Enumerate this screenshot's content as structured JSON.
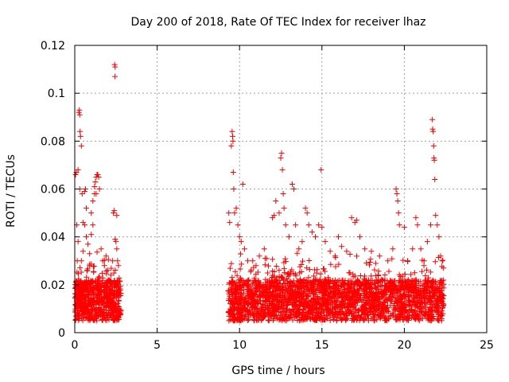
{
  "chart_data": {
    "type": "scatter",
    "title": "Day 200 of 2018, Rate Of TEC Index for receiver lhaz",
    "xlabel": "GPS time / hours",
    "ylabel": "ROTI / TECUs",
    "xlim": [
      0,
      25
    ],
    "ylim": [
      0,
      0.12
    ],
    "x_ticks": [
      "0",
      "5",
      "10",
      "15",
      "20",
      "25"
    ],
    "y_ticks": [
      "0",
      "0.02",
      "0.04",
      "0.06",
      "0.08",
      "0.1",
      "0.12"
    ],
    "grid": true,
    "marker": "plus",
    "color": "#ff0000",
    "series": [
      {
        "values": [
          [
            0.05,
            0.066
          ],
          [
            0.1,
            0.067
          ],
          [
            0.12,
            0.045
          ],
          [
            0.15,
            0.03
          ],
          [
            0.2,
            0.038
          ],
          [
            0.25,
            0.092
          ],
          [
            0.28,
            0.093
          ],
          [
            0.3,
            0.091
          ],
          [
            0.32,
            0.084
          ],
          [
            0.35,
            0.082
          ],
          [
            0.4,
            0.078
          ],
          [
            0.2,
            0.068
          ],
          [
            0.3,
            0.06
          ],
          [
            0.45,
            0.058
          ],
          [
            0.5,
            0.046
          ],
          [
            0.6,
            0.045
          ],
          [
            0.7,
            0.04
          ],
          [
            0.8,
            0.037
          ],
          [
            0.9,
            0.033
          ],
          [
            1.0,
            0.05
          ],
          [
            1.1,
            0.055
          ],
          [
            1.2,
            0.058
          ],
          [
            1.3,
            0.065
          ],
          [
            1.35,
            0.066
          ],
          [
            1.4,
            0.066
          ],
          [
            1.45,
            0.065
          ],
          [
            1.5,
            0.06
          ],
          [
            1.2,
            0.061
          ],
          [
            1.25,
            0.063
          ],
          [
            1.3,
            0.058
          ],
          [
            1.1,
            0.045
          ],
          [
            1.0,
            0.041
          ],
          [
            0.6,
            0.059
          ],
          [
            0.65,
            0.06
          ],
          [
            0.7,
            0.052
          ],
          [
            0.5,
            0.034
          ],
          [
            0.4,
            0.03
          ],
          [
            0.9,
            0.028
          ],
          [
            1.6,
            0.035
          ],
          [
            1.7,
            0.03
          ],
          [
            1.8,
            0.028
          ],
          [
            2.0,
            0.026
          ],
          [
            2.2,
            0.024
          ],
          [
            2.3,
            0.03
          ],
          [
            2.35,
            0.05
          ],
          [
            2.4,
            0.051
          ],
          [
            2.45,
            0.039
          ],
          [
            2.5,
            0.038
          ],
          [
            2.42,
            0.112
          ],
          [
            2.45,
            0.111
          ],
          [
            2.44,
            0.107
          ],
          [
            2.55,
            0.035
          ],
          [
            2.6,
            0.03
          ],
          [
            2.65,
            0.028
          ],
          [
            2.55,
            0.049
          ],
          [
            1.9,
            0.032
          ],
          [
            9.35,
            0.05
          ],
          [
            9.4,
            0.046
          ],
          [
            9.5,
            0.078
          ],
          [
            9.55,
            0.084
          ],
          [
            9.58,
            0.082
          ],
          [
            9.6,
            0.08
          ],
          [
            9.62,
            0.067
          ],
          [
            9.65,
            0.06
          ],
          [
            9.7,
            0.05
          ],
          [
            9.8,
            0.052
          ],
          [
            9.9,
            0.045
          ],
          [
            10.0,
            0.04
          ],
          [
            10.1,
            0.038
          ],
          [
            10.2,
            0.062
          ],
          [
            10.3,
            0.035
          ],
          [
            10.5,
            0.03
          ],
          [
            10.8,
            0.03
          ],
          [
            11.0,
            0.028
          ],
          [
            11.2,
            0.032
          ],
          [
            11.5,
            0.035
          ],
          [
            12.0,
            0.048
          ],
          [
            12.1,
            0.049
          ],
          [
            12.2,
            0.055
          ],
          [
            12.4,
            0.05
          ],
          [
            12.5,
            0.073
          ],
          [
            12.55,
            0.075
          ],
          [
            12.6,
            0.068
          ],
          [
            12.65,
            0.058
          ],
          [
            12.7,
            0.052
          ],
          [
            12.8,
            0.045
          ],
          [
            13.0,
            0.04
          ],
          [
            13.2,
            0.062
          ],
          [
            13.3,
            0.06
          ],
          [
            13.4,
            0.045
          ],
          [
            13.6,
            0.035
          ],
          [
            13.8,
            0.038
          ],
          [
            14.0,
            0.052
          ],
          [
            14.1,
            0.05
          ],
          [
            14.2,
            0.045
          ],
          [
            14.4,
            0.042
          ],
          [
            14.6,
            0.04
          ],
          [
            14.8,
            0.045
          ],
          [
            14.95,
            0.068
          ],
          [
            15.0,
            0.044
          ],
          [
            15.2,
            0.038
          ],
          [
            15.5,
            0.034
          ],
          [
            15.8,
            0.032
          ],
          [
            16.0,
            0.04
          ],
          [
            16.2,
            0.036
          ],
          [
            16.5,
            0.034
          ],
          [
            16.8,
            0.048
          ],
          [
            17.0,
            0.046
          ],
          [
            17.1,
            0.047
          ],
          [
            17.3,
            0.04
          ],
          [
            17.6,
            0.035
          ],
          [
            18.0,
            0.034
          ],
          [
            18.5,
            0.032
          ],
          [
            19.0,
            0.03
          ],
          [
            19.3,
            0.035
          ],
          [
            19.5,
            0.06
          ],
          [
            19.55,
            0.058
          ],
          [
            19.6,
            0.055
          ],
          [
            19.65,
            0.05
          ],
          [
            19.7,
            0.045
          ],
          [
            20.0,
            0.044
          ],
          [
            20.2,
            0.03
          ],
          [
            20.5,
            0.035
          ],
          [
            20.7,
            0.048
          ],
          [
            20.8,
            0.045
          ],
          [
            21.0,
            0.035
          ],
          [
            21.2,
            0.03
          ],
          [
            21.4,
            0.038
          ],
          [
            21.6,
            0.045
          ],
          [
            21.7,
            0.089
          ],
          [
            21.72,
            0.085
          ],
          [
            21.75,
            0.084
          ],
          [
            21.78,
            0.078
          ],
          [
            21.8,
            0.073
          ],
          [
            21.82,
            0.072
          ],
          [
            21.85,
            0.064
          ],
          [
            21.9,
            0.049
          ],
          [
            22.0,
            0.045
          ],
          [
            22.1,
            0.04
          ],
          [
            22.2,
            0.032
          ],
          [
            22.3,
            0.03
          ]
        ]
      }
    ]
  }
}
